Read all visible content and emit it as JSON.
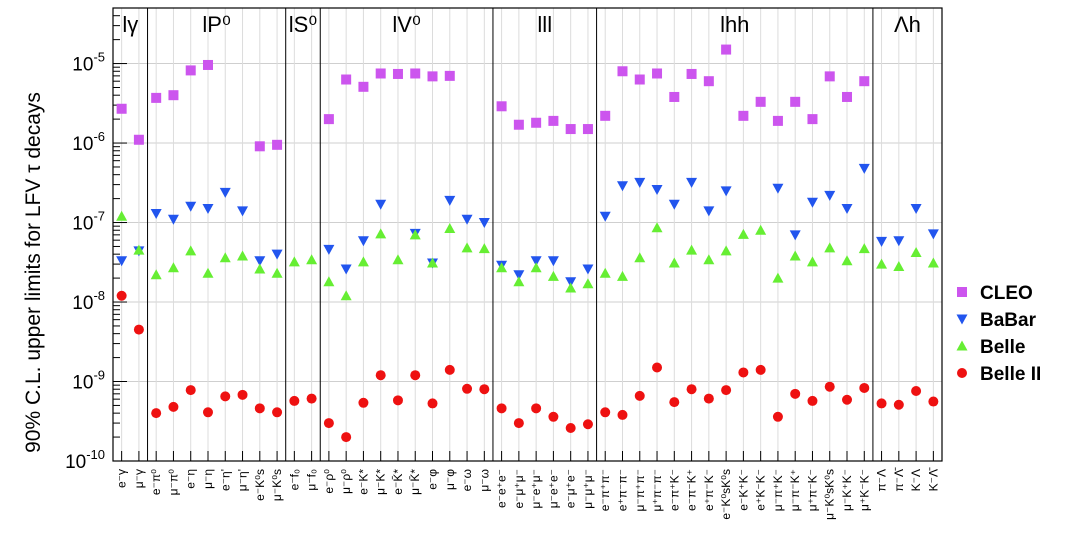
{
  "chart_data": {
    "type": "scatter",
    "ylabel": "90% C.L. upper limits for LFV τ decays",
    "yscale": "log",
    "ylim": [
      1e-10,
      5e-05
    ],
    "y_ticks": [
      {
        "value": 1e-10,
        "label": "10",
        "exp": "-10"
      },
      {
        "value": 1e-09,
        "label": "10",
        "exp": "-9"
      },
      {
        "value": 1e-08,
        "label": "10",
        "exp": "-8"
      },
      {
        "value": 1e-07,
        "label": "10",
        "exp": "-7"
      },
      {
        "value": 1e-06,
        "label": "10",
        "exp": "-6"
      },
      {
        "value": 1e-05,
        "label": "10",
        "exp": "-5"
      }
    ],
    "grid": true,
    "legend_position": "right",
    "categories": [
      "e⁻γ",
      "μ⁻γ",
      "e⁻π⁰",
      "μ⁻π⁰",
      "e⁻η",
      "μ⁻η",
      "e⁻η'",
      "μ⁻η'",
      "e⁻K⁰s",
      "μ⁻K⁰s",
      "e⁻f₀",
      "μ⁻f₀",
      "e⁻ρ⁰",
      "μ⁻ρ⁰",
      "e⁻K*",
      "μ⁻K*",
      "e⁻K̄*",
      "μ⁻K̄*",
      "e⁻φ",
      "μ⁻φ",
      "e⁻ω",
      "μ⁻ω",
      "e⁻e⁺e⁻",
      "e⁻μ⁺μ⁻",
      "μ⁻e⁺μ⁻",
      "μ⁻e⁺e⁻",
      "e⁻μ⁺e⁻",
      "μ⁻μ⁺μ⁻",
      "e⁻π⁺π⁻",
      "e⁺π⁻π⁻",
      "μ⁻π⁺π⁻",
      "μ⁺π⁻π⁻",
      "e⁻π⁺K⁻",
      "e⁻π⁻K⁺",
      "e⁺π⁻K⁻",
      "e⁻K⁰sK⁰s",
      "e⁻K⁺K⁻",
      "e⁺K⁻K⁻",
      "μ⁻π⁺K⁻",
      "μ⁻π⁻K⁺",
      "μ⁺π⁻K⁻",
      "μ⁻K⁰sK⁰s",
      "μ⁻K⁺K⁻",
      "μ⁺K⁻K⁻",
      "π⁻Λ",
      "π⁻Λ̄",
      "K⁻Λ",
      "K⁻Λ̄"
    ],
    "groups": [
      {
        "label": "lγ",
        "start": 0,
        "end": 1
      },
      {
        "label": "lP⁰",
        "start": 2,
        "end": 9
      },
      {
        "label": "lS⁰",
        "start": 10,
        "end": 11
      },
      {
        "label": "lV⁰",
        "start": 12,
        "end": 21
      },
      {
        "label": "lll",
        "start": 22,
        "end": 27
      },
      {
        "label": "lhh",
        "start": 28,
        "end": 43
      },
      {
        "label": "Λh",
        "start": 44,
        "end": 47
      }
    ],
    "series": [
      {
        "name": "CLEO",
        "marker": "square",
        "color": "#cc55ee",
        "values": [
          2.7e-06,
          1.1e-06,
          3.7e-06,
          4e-06,
          8.2e-06,
          9.6e-06,
          null,
          null,
          9.1e-07,
          9.5e-07,
          null,
          null,
          2e-06,
          6.3e-06,
          5.1e-06,
          7.5e-06,
          7.4e-06,
          7.5e-06,
          6.9e-06,
          7e-06,
          null,
          null,
          2.9e-06,
          1.7e-06,
          1.8e-06,
          1.9e-06,
          1.5e-06,
          1.5e-06,
          2.2e-06,
          8e-06,
          6.3e-06,
          7.5e-06,
          3.8e-06,
          7.4e-06,
          6e-06,
          1.5e-05,
          2.2e-06,
          3.3e-06,
          1.9e-06,
          3.3e-06,
          2e-06,
          6.9e-06,
          3.8e-06,
          6e-06,
          null,
          null,
          null,
          null
        ]
      },
      {
        "name": "BaBar",
        "marker": "triangle-down",
        "color": "#2255ee",
        "values": [
          3.3e-08,
          4.4e-08,
          1.3e-07,
          1.1e-07,
          1.6e-07,
          1.5e-07,
          2.4e-07,
          1.4e-07,
          3.3e-08,
          4e-08,
          null,
          null,
          4.6e-08,
          2.6e-08,
          5.9e-08,
          1.7e-07,
          null,
          7.3e-08,
          3.1e-08,
          1.9e-07,
          1.1e-07,
          1e-07,
          2.9e-08,
          2.2e-08,
          3.3e-08,
          3.3e-08,
          1.8e-08,
          2.6e-08,
          1.2e-07,
          2.9e-07,
          3.2e-07,
          2.6e-07,
          1.7e-07,
          3.2e-07,
          1.4e-07,
          2.5e-07,
          null,
          null,
          2.7e-07,
          7e-08,
          1.8e-07,
          2.2e-07,
          1.5e-07,
          4.8e-07,
          5.8e-08,
          5.9e-08,
          1.5e-07,
          7.2e-08
        ]
      },
      {
        "name": "Belle",
        "marker": "triangle-up",
        "color": "#66ee33",
        "values": [
          1.2e-07,
          4.5e-08,
          2.2e-08,
          2.7e-08,
          4.4e-08,
          2.3e-08,
          3.6e-08,
          3.8e-08,
          2.6e-08,
          2.3e-08,
          3.2e-08,
          3.4e-08,
          1.8e-08,
          1.2e-08,
          3.2e-08,
          7.2e-08,
          3.4e-08,
          7e-08,
          3.1e-08,
          8.4e-08,
          4.8e-08,
          4.7e-08,
          2.7e-08,
          1.8e-08,
          2.7e-08,
          2.1e-08,
          1.5e-08,
          1.7e-08,
          2.3e-08,
          2.1e-08,
          3.6e-08,
          8.6e-08,
          3.1e-08,
          4.5e-08,
          3.4e-08,
          4.4e-08,
          7.1e-08,
          8e-08,
          2e-08,
          3.8e-08,
          3.2e-08,
          4.8e-08,
          3.3e-08,
          4.7e-08,
          3e-08,
          2.8e-08,
          4.2e-08,
          3.1e-08
        ]
      },
      {
        "name": "Belle II",
        "marker": "circle",
        "color": "#ee1111",
        "values": [
          1.2e-08,
          4.5e-09,
          4e-10,
          4.8e-10,
          7.8e-10,
          4.1e-10,
          6.5e-10,
          6.8e-10,
          4.6e-10,
          4.1e-10,
          5.7e-10,
          6.1e-10,
          3e-10,
          2e-10,
          5.4e-10,
          1.2e-09,
          5.8e-10,
          1.2e-09,
          5.3e-10,
          1.4e-09,
          8.1e-10,
          8e-10,
          4.6e-10,
          3e-10,
          4.6e-10,
          3.6e-10,
          2.6e-10,
          2.9e-10,
          4.1e-10,
          3.8e-10,
          6.6e-10,
          1.5e-09,
          5.5e-10,
          8e-10,
          6.1e-10,
          7.8e-10,
          1.3e-09,
          1.4e-09,
          3.6e-10,
          7e-10,
          5.7e-10,
          8.6e-10,
          5.9e-10,
          8.3e-10,
          5.3e-10,
          5.1e-10,
          7.6e-10,
          5.6e-10
        ]
      }
    ]
  }
}
